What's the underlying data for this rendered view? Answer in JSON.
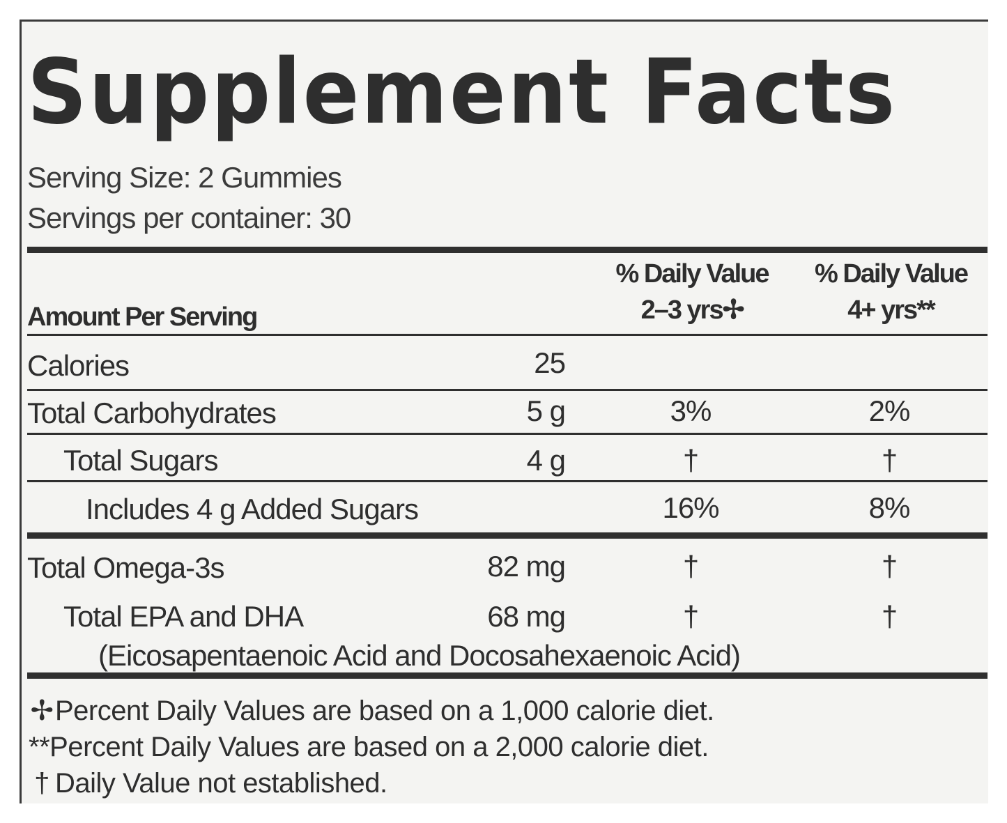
{
  "title": "Supplement Facts",
  "serving_size": "Serving Size: 2 Gummies",
  "servings_per_container": "Servings per container: 30",
  "header": {
    "amount_per_serving": "Amount Per Serving",
    "dv_col1_line1": "% Daily Value",
    "dv_col1_line2": "2–3 yrs✢",
    "dv_col2_line1": "% Daily Value",
    "dv_col2_line2": "4+ yrs**"
  },
  "rows": [
    {
      "name": "Calories",
      "amount": "25",
      "dv1": "",
      "dv2": ""
    },
    {
      "name": "Total Carbohydrates",
      "amount": "5 g",
      "dv1": "3%",
      "dv2": "2%"
    },
    {
      "name": "Total Sugars",
      "amount": "4 g",
      "dv1": "†",
      "dv2": "†"
    },
    {
      "name": "Includes 4 g Added Sugars",
      "amount": "",
      "dv1": "16%",
      "dv2": "8%"
    },
    {
      "name": "Total Omega-3s",
      "amount": "82 mg",
      "dv1": "†",
      "dv2": "†"
    },
    {
      "name": "Total EPA and DHA",
      "amount": "68 mg",
      "dv1": "†",
      "dv2": "†",
      "sub": "(Eicosapentaenoic Acid and Docosahexaenoic Acid)"
    }
  ],
  "footnotes": [
    {
      "symbol": "✢",
      "text": "Percent Daily Values are based on a 1,000 calorie diet."
    },
    {
      "symbol": "**",
      "text": "Percent Daily Values are based on a 2,000 calorie diet."
    },
    {
      "symbol": "†",
      "text": "Daily Value not established."
    }
  ]
}
